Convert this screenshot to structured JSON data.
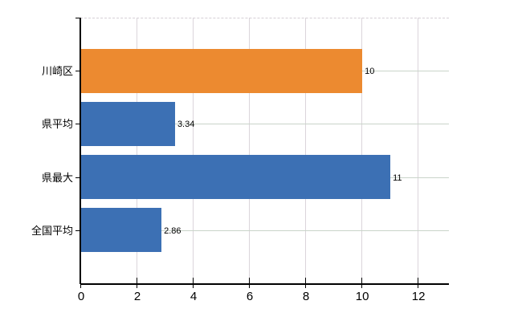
{
  "chart_data": {
    "type": "bar",
    "orientation": "horizontal",
    "categories": [
      "川崎区",
      "県平均",
      "県最大",
      "全国平均"
    ],
    "values": [
      10,
      3.34,
      11,
      2.86
    ],
    "value_labels": [
      "10",
      "3.34",
      "11",
      "2.86"
    ],
    "bar_colors": [
      "#EC8A30",
      "#3C70B4",
      "#3C70B4",
      "#3C70B4"
    ],
    "x_ticks": [
      0,
      2,
      4,
      6,
      8,
      10,
      12
    ],
    "x_tick_labels": [
      "0",
      "2",
      "4",
      "6",
      "8",
      "10",
      "12"
    ],
    "xlim": [
      0,
      13.11
    ],
    "grid": true,
    "legend": false,
    "colors": {
      "axis": "#000000",
      "vertical_grid": "#DBD5DB",
      "horizontal_grid": "#C9D4C9",
      "top_border": "#D5CFD5",
      "text": "#000000",
      "background": "#FFFFFF"
    }
  }
}
